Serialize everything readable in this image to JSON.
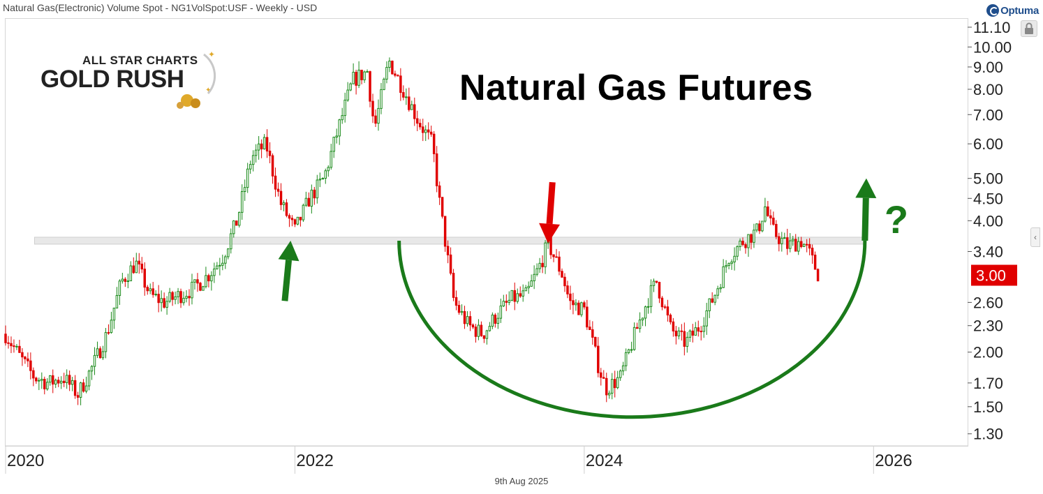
{
  "header": {
    "title": "Natural Gas(Electronic) Volume Spot - NG1VolSpot:USF - Weekly - USD",
    "brand": "Optuma"
  },
  "watermark": {
    "line1": "ALL STAR CHARTS",
    "line2": "GOLD RUSH"
  },
  "footer": {
    "date": "9th Aug 2025"
  },
  "colors": {
    "up": "#1a8a1a",
    "down": "#e00000",
    "annotation": "#1a7a1a",
    "price_badge": "#e00000"
  },
  "chart_data": {
    "type": "candlestick",
    "title": "Natural Gas Futures",
    "y_scale": "log",
    "ylim": [
      1.22,
      11.6
    ],
    "xlim": [
      2020.0,
      2026.65
    ],
    "y_ticks": [
      "11.10",
      "10.00",
      "9.00",
      "8.00",
      "7.00",
      "6.00",
      "5.00",
      "4.50",
      "4.00",
      "3.40",
      "2.60",
      "2.30",
      "2.00",
      "1.70",
      "1.50",
      "1.30"
    ],
    "x_ticks": [
      "2020",
      "2022",
      "2024",
      "2026"
    ],
    "last_price": "3.00",
    "support_level": 3.6,
    "price_path": [
      [
        2020.0,
        2.2
      ],
      [
        2020.1,
        1.95
      ],
      [
        2020.2,
        1.75
      ],
      [
        2020.3,
        1.7
      ],
      [
        2020.4,
        1.75
      ],
      [
        2020.5,
        1.6
      ],
      [
        2020.6,
        1.85
      ],
      [
        2020.7,
        2.2
      ],
      [
        2020.8,
        2.9
      ],
      [
        2020.9,
        3.2
      ],
      [
        2021.0,
        2.7
      ],
      [
        2021.1,
        2.6
      ],
      [
        2021.2,
        2.7
      ],
      [
        2021.3,
        2.8
      ],
      [
        2021.4,
        3.0
      ],
      [
        2021.5,
        3.3
      ],
      [
        2021.6,
        4.0
      ],
      [
        2021.7,
        5.6
      ],
      [
        2021.8,
        6.0
      ],
      [
        2021.9,
        4.4
      ],
      [
        2022.0,
        3.8
      ],
      [
        2022.1,
        4.5
      ],
      [
        2022.2,
        5.0
      ],
      [
        2022.3,
        6.5
      ],
      [
        2022.4,
        8.4
      ],
      [
        2022.5,
        8.8
      ],
      [
        2022.55,
        6.5
      ],
      [
        2022.65,
        9.3
      ],
      [
        2022.75,
        8.0
      ],
      [
        2022.85,
        6.8
      ],
      [
        2022.95,
        6.0
      ],
      [
        2023.0,
        4.4
      ],
      [
        2023.1,
        2.6
      ],
      [
        2023.2,
        2.3
      ],
      [
        2023.3,
        2.2
      ],
      [
        2023.4,
        2.45
      ],
      [
        2023.5,
        2.65
      ],
      [
        2023.6,
        2.7
      ],
      [
        2023.7,
        3.2
      ],
      [
        2023.75,
        3.55
      ],
      [
        2023.85,
        3.0
      ],
      [
        2023.9,
        2.6
      ],
      [
        2024.0,
        2.5
      ],
      [
        2024.1,
        1.85
      ],
      [
        2024.15,
        1.65
      ],
      [
        2024.25,
        1.75
      ],
      [
        2024.35,
        2.2
      ],
      [
        2024.45,
        2.7
      ],
      [
        2024.5,
        2.9
      ],
      [
        2024.6,
        2.25
      ],
      [
        2024.7,
        2.1
      ],
      [
        2024.8,
        2.3
      ],
      [
        2024.9,
        2.7
      ],
      [
        2025.0,
        3.3
      ],
      [
        2025.1,
        3.6
      ],
      [
        2025.2,
        3.8
      ],
      [
        2025.25,
        4.3
      ],
      [
        2025.3,
        3.8
      ],
      [
        2025.4,
        3.5
      ],
      [
        2025.5,
        3.6
      ],
      [
        2025.55,
        3.4
      ],
      [
        2025.62,
        3.0
      ]
    ],
    "annotations": {
      "green_arrow_support": {
        "x": 2021.97,
        "y_from": 2.62,
        "y_to": 3.6
      },
      "red_arrow_resistance": {
        "x": 2023.75,
        "y_from": 4.9,
        "y_to": 3.55
      },
      "right_arrow": {
        "x": 2025.94,
        "y_from": 3.6,
        "y_to": 5.0
      },
      "question_mark": "?",
      "rounding_bottom": {
        "x_start": 2022.72,
        "x_end": 2025.94,
        "y_top": 3.6,
        "y_bottom": 1.42
      }
    }
  }
}
